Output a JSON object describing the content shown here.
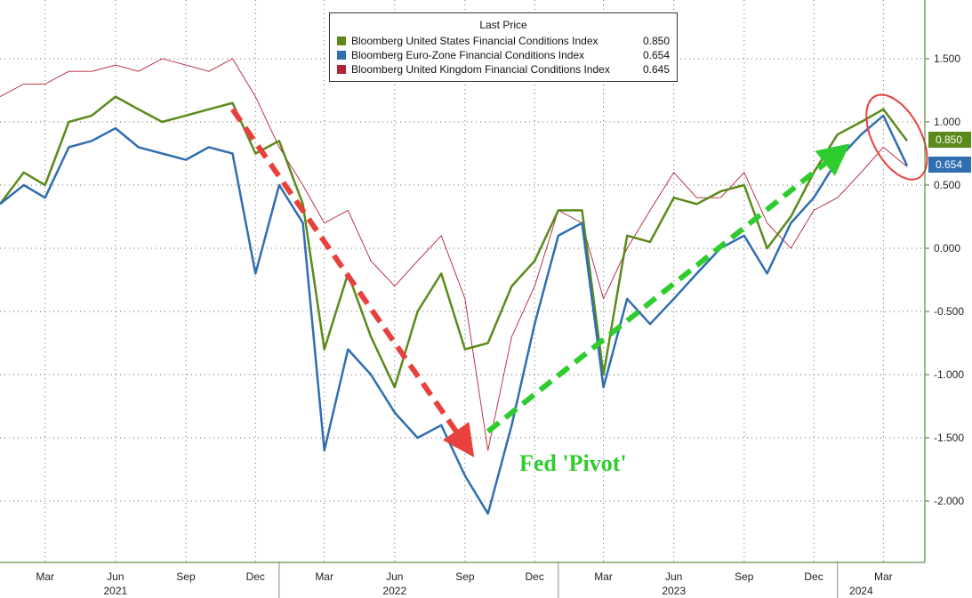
{
  "chart_data": {
    "type": "line",
    "legend_title": "Last Price",
    "legend_placement": "top-center",
    "grid": true,
    "x_range": [
      "2021-01",
      "2024-04"
    ],
    "y_ticks": [
      "1.500",
      "1.000",
      "0.500",
      "0.000",
      "-0.500",
      "-1.000",
      "-1.500",
      "-2.000"
    ],
    "y_tick_values": [
      1.5,
      1.0,
      0.5,
      0.0,
      -0.5,
      -1.0,
      -1.5,
      -2.0
    ],
    "ylim": [
      -2.5,
      1.9
    ],
    "x_tick_labels": [
      {
        "label": "Mar",
        "date": "2021-03"
      },
      {
        "label": "Jun",
        "date": "2021-06"
      },
      {
        "label": "Sep",
        "date": "2021-09"
      },
      {
        "label": "Dec",
        "date": "2021-12"
      },
      {
        "label": "Mar",
        "date": "2022-03"
      },
      {
        "label": "Jun",
        "date": "2022-06"
      },
      {
        "label": "Sep",
        "date": "2022-09"
      },
      {
        "label": "Dec",
        "date": "2022-12"
      },
      {
        "label": "Mar",
        "date": "2023-03"
      },
      {
        "label": "Jun",
        "date": "2023-06"
      },
      {
        "label": "Sep",
        "date": "2023-09"
      },
      {
        "label": "Dec",
        "date": "2023-12"
      },
      {
        "label": "Mar",
        "date": "2024-03"
      }
    ],
    "year_labels": [
      {
        "label": "2021",
        "date": "2021-06"
      },
      {
        "label": "2022",
        "date": "2022-06"
      },
      {
        "label": "2023",
        "date": "2023-06"
      },
      {
        "label": "2024",
        "date": "2024-02"
      }
    ],
    "series": [
      {
        "name": "Bloomberg United States Financial Conditions Index",
        "last": "0.850",
        "color": "#5b8a1b",
        "x": [
          "2021-01",
          "2021-02",
          "2021-03",
          "2021-04",
          "2021-05",
          "2021-06",
          "2021-07",
          "2021-08",
          "2021-09",
          "2021-10",
          "2021-11",
          "2021-12",
          "2022-01",
          "2022-02",
          "2022-03",
          "2022-04",
          "2022-05",
          "2022-06",
          "2022-07",
          "2022-08",
          "2022-09",
          "2022-10",
          "2022-11",
          "2022-12",
          "2023-01",
          "2023-02",
          "2023-03",
          "2023-04",
          "2023-05",
          "2023-06",
          "2023-07",
          "2023-08",
          "2023-09",
          "2023-10",
          "2023-11",
          "2023-12",
          "2024-01",
          "2024-02",
          "2024-03",
          "2024-04"
        ],
        "values": [
          0.35,
          0.6,
          0.5,
          1.0,
          1.05,
          1.2,
          1.1,
          1.0,
          1.05,
          1.1,
          1.15,
          0.75,
          0.85,
          0.35,
          -0.8,
          -0.2,
          -0.7,
          -1.1,
          -0.5,
          -0.2,
          -0.8,
          -0.75,
          -0.3,
          -0.1,
          0.3,
          0.3,
          -1.0,
          0.1,
          0.05,
          0.4,
          0.35,
          0.45,
          0.5,
          0.0,
          0.25,
          0.6,
          0.9,
          1.0,
          1.1,
          0.85
        ]
      },
      {
        "name": "Bloomberg Euro-Zone Financial Conditions Index",
        "last": "0.654",
        "color": "#2f6eb0",
        "x": [
          "2021-01",
          "2021-02",
          "2021-03",
          "2021-04",
          "2021-05",
          "2021-06",
          "2021-07",
          "2021-08",
          "2021-09",
          "2021-10",
          "2021-11",
          "2021-12",
          "2022-01",
          "2022-02",
          "2022-03",
          "2022-04",
          "2022-05",
          "2022-06",
          "2022-07",
          "2022-08",
          "2022-09",
          "2022-10",
          "2022-11",
          "2022-12",
          "2023-01",
          "2023-02",
          "2023-03",
          "2023-04",
          "2023-05",
          "2023-06",
          "2023-07",
          "2023-08",
          "2023-09",
          "2023-10",
          "2023-11",
          "2023-12",
          "2024-01",
          "2024-02",
          "2024-03",
          "2024-04"
        ],
        "values": [
          0.35,
          0.5,
          0.4,
          0.8,
          0.85,
          0.95,
          0.8,
          0.75,
          0.7,
          0.8,
          0.75,
          -0.2,
          0.5,
          0.2,
          -1.6,
          -0.8,
          -1.0,
          -1.3,
          -1.5,
          -1.4,
          -1.8,
          -2.1,
          -1.4,
          -0.6,
          0.1,
          0.2,
          -1.1,
          -0.4,
          -0.6,
          -0.4,
          -0.2,
          0.0,
          0.1,
          -0.2,
          0.2,
          0.4,
          0.7,
          0.9,
          1.05,
          0.654
        ]
      },
      {
        "name": "Bloomberg United Kingdom Financial Conditions Index",
        "last": "0.645",
        "color": "#b22235",
        "x": [
          "2021-01",
          "2021-02",
          "2021-03",
          "2021-04",
          "2021-05",
          "2021-06",
          "2021-07",
          "2021-08",
          "2021-09",
          "2021-10",
          "2021-11",
          "2021-12",
          "2022-01",
          "2022-02",
          "2022-03",
          "2022-04",
          "2022-05",
          "2022-06",
          "2022-07",
          "2022-08",
          "2022-09",
          "2022-10",
          "2022-11",
          "2022-12",
          "2023-01",
          "2023-02",
          "2023-03",
          "2023-04",
          "2023-05",
          "2023-06",
          "2023-07",
          "2023-08",
          "2023-09",
          "2023-10",
          "2023-11",
          "2023-12",
          "2024-01",
          "2024-02",
          "2024-03",
          "2024-04"
        ],
        "values": [
          1.2,
          1.3,
          1.3,
          1.4,
          1.4,
          1.45,
          1.4,
          1.5,
          1.45,
          1.4,
          1.5,
          1.2,
          0.8,
          0.5,
          0.2,
          0.3,
          -0.1,
          -0.3,
          -0.1,
          0.1,
          -0.4,
          -1.6,
          -0.7,
          -0.3,
          0.3,
          0.2,
          -0.4,
          0.0,
          0.3,
          0.6,
          0.4,
          0.4,
          0.6,
          0.2,
          0.0,
          0.3,
          0.4,
          0.6,
          0.8,
          0.645
        ]
      }
    ],
    "annotations": [
      {
        "type": "arrow",
        "color": "#e8403c",
        "from": {
          "date": "2021-11",
          "value": 1.1
        },
        "to": {
          "date": "2022-09",
          "value": -1.55
        }
      },
      {
        "type": "arrow",
        "color": "#2ecc2e",
        "from": {
          "date": "2022-10",
          "value": -1.45
        },
        "to": {
          "date": "2024-01",
          "value": 0.75
        }
      },
      {
        "type": "text",
        "text": "Fed 'Pivot'",
        "color": "#2ecc2e"
      },
      {
        "type": "ellipse",
        "color": "#e8403c",
        "center": {
          "date": "2024-03",
          "value": 0.95
        }
      }
    ]
  },
  "badges": {
    "us": "0.850",
    "eu": "0.654"
  }
}
